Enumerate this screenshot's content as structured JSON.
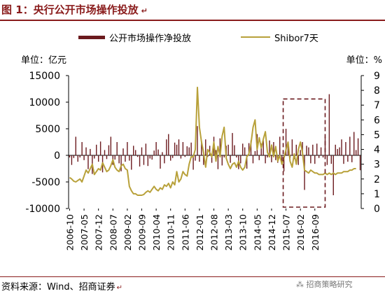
{
  "figure": {
    "title": "图 1：央行公开市场操作投放",
    "source": "资料来源：Wind、招商证券",
    "watermark": "招商策略研究",
    "paragraph_mark": "↵"
  },
  "chart_data": {
    "type": "bar",
    "left_axis_unit": "单位：亿元",
    "right_axis_unit": "单位：%",
    "legend": [
      {
        "name": "公开市场操作净投放",
        "color": "#6b1a1e",
        "kind": "bar"
      },
      {
        "name": "Shibor7天",
        "color": "#b8a13a",
        "kind": "line"
      }
    ],
    "y_left": {
      "min": -10000,
      "max": 15000,
      "ticks": [
        -10000,
        -5000,
        0,
        5000,
        10000,
        15000
      ]
    },
    "y_right": {
      "min": 0,
      "max": 9,
      "ticks": [
        0,
        1,
        2,
        3,
        4,
        5,
        6,
        7,
        8,
        9
      ]
    },
    "x_ticks": [
      "2006-10",
      "2007-05",
      "2007-12",
      "2008-07",
      "2009-02",
      "2009-09",
      "2010-04",
      "2010-11",
      "2011-06",
      "2012-01",
      "2012-08",
      "2013-03",
      "2013-10",
      "2014-05",
      "2014-12",
      "2015-07",
      "2016-02",
      "2016-09"
    ],
    "x_start": "2006-10",
    "highlight_box": {
      "from": "2015-07",
      "to": "2017-02"
    },
    "series": [
      {
        "name": "公开市场操作净投放",
        "values": [
          -400,
          -1800,
          -500,
          3500,
          -1200,
          -400,
          2500,
          -900,
          1500,
          -2600,
          1200,
          -3500,
          -600,
          2000,
          -1200,
          2600,
          -3200,
          1000,
          -700,
          1900,
          3500,
          -1800,
          -800,
          2500,
          -1500,
          -3000,
          1300,
          -1200,
          2500,
          -1000,
          -2700,
          1800,
          1000,
          -300,
          -2100,
          1500,
          -1800,
          2200,
          -2000,
          -600,
          -800,
          900,
          2500,
          1100,
          -2500,
          600,
          -1500,
          3000,
          4000,
          -1000,
          -500,
          2400,
          2000,
          3000,
          -600,
          2500,
          -300,
          1700,
          1500,
          2400,
          -2700,
          -1000,
          5500,
          -1200,
          2600,
          -1800,
          3000,
          -300,
          1800,
          -1400,
          3500,
          1000,
          -2600,
          3200,
          -1900,
          -400,
          1800,
          2000,
          -1400,
          4200,
          1900,
          -400,
          -2600,
          -1500,
          2200,
          1500,
          -2500,
          2300,
          2800,
          -1500,
          800,
          4000,
          -900,
          2200,
          2800,
          -1500,
          -400,
          2800,
          -1300,
          2500,
          -900,
          -1400,
          3500,
          -1200,
          -3000,
          5000,
          1800,
          -500,
          3000,
          -700,
          2000,
          -1800,
          1000,
          2500,
          -6500,
          1800,
          1500,
          -1500,
          2000,
          -1600,
          2200,
          -500,
          1500,
          -400,
          3500,
          -1800,
          11500,
          -1600,
          -7500,
          2000,
          1200,
          1500,
          3000,
          -1600,
          2500,
          -1200,
          3500,
          -1300,
          4400,
          1000,
          3200,
          -2800
        ],
        "color": "#6b1a1e"
      },
      {
        "name": "Shibor7天",
        "values": [
          2.1,
          2.0,
          1.85,
          1.8,
          1.9,
          2.0,
          1.8,
          2.2,
          2.6,
          2.4,
          2.7,
          3.0,
          2.3,
          2.5,
          2.7,
          2.6,
          3.1,
          2.8,
          2.5,
          2.6,
          2.9,
          3.3,
          2.8,
          2.6,
          2.5,
          2.9,
          3.0,
          2.7,
          2.6,
          1.5,
          1.2,
          1.0,
          1.0,
          0.9,
          0.9,
          0.9,
          0.95,
          1.1,
          1.2,
          1.1,
          1.3,
          1.5,
          1.3,
          1.2,
          1.4,
          1.3,
          1.6,
          1.5,
          1.7,
          1.4,
          1.8,
          1.6,
          2.5,
          1.8,
          2.0,
          2.5,
          2.3,
          2.2,
          3.0,
          3.5,
          3.5,
          4.0,
          8.2,
          5.5,
          4.5,
          3.8,
          2.8,
          4.0,
          3.8,
          3.5,
          4.5,
          3.2,
          4.2,
          3.5,
          4.9,
          5.5,
          3.4,
          3.0,
          2.7,
          3.0,
          3.1,
          2.8,
          3.2,
          2.8,
          2.6,
          2.8,
          3.5,
          3.7,
          4.4,
          5.5,
          6.0,
          4.0,
          4.8,
          4.1,
          4.7,
          5.2,
          3.8,
          3.5,
          4.3,
          3.5,
          4.2,
          3.2,
          3.6,
          3.0,
          3.4,
          4.0,
          4.5,
          3.2,
          2.8,
          3.7,
          3.0,
          4.0,
          4.5,
          3.8,
          2.6,
          2.5,
          2.4,
          2.6,
          2.5,
          2.4,
          2.4,
          2.3,
          2.3,
          2.3,
          2.4,
          2.3,
          2.4,
          2.3,
          2.4,
          2.3,
          2.4,
          2.4,
          2.4,
          2.5,
          2.5,
          2.5,
          2.6,
          2.6,
          2.7,
          2.7
        ],
        "color": "#b8a13a"
      }
    ]
  }
}
